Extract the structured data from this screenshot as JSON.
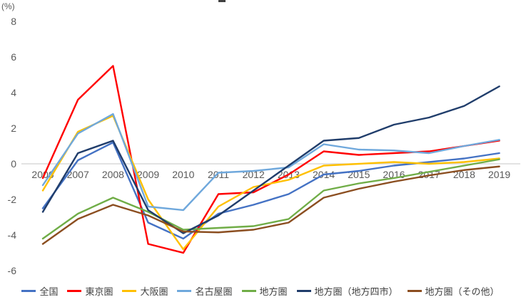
{
  "chart_data": {
    "type": "line",
    "title": "",
    "unit_label": "(%)",
    "x": [
      2006,
      2007,
      2008,
      2009,
      2010,
      2011,
      2012,
      2013,
      2014,
      2015,
      2016,
      2017,
      2018,
      2019
    ],
    "yticks": [
      8,
      6,
      4,
      2,
      0,
      -2,
      -4,
      -6
    ],
    "ylim": [
      -6,
      8
    ],
    "grid": "zero-line-only",
    "legend_position": "bottom",
    "series": [
      {
        "name": "全国",
        "color": "#4472C4",
        "values": [
          -2.5,
          0.2,
          1.2,
          -3.3,
          -4.2,
          -2.8,
          -2.3,
          -1.7,
          -0.6,
          -0.4,
          -0.1,
          0.1,
          0.3,
          0.6
        ]
      },
      {
        "name": "東京圏",
        "color": "#FF0000",
        "values": [
          -0.8,
          3.6,
          5.5,
          -4.5,
          -5.0,
          -1.7,
          -1.6,
          -0.6,
          0.7,
          0.5,
          0.6,
          0.7,
          1.0,
          1.3
        ]
      },
      {
        "name": "大阪圏",
        "color": "#FFC000",
        "values": [
          -1.5,
          1.8,
          2.7,
          -2.0,
          -4.8,
          -2.4,
          -1.3,
          -0.9,
          -0.1,
          0.0,
          0.1,
          0.0,
          0.1,
          0.3
        ]
      },
      {
        "name": "名古屋圏",
        "color": "#6FA8DC",
        "values": [
          -1.2,
          1.7,
          2.8,
          -2.4,
          -2.6,
          -0.5,
          -0.4,
          -0.2,
          1.1,
          0.8,
          0.75,
          0.6,
          1.0,
          1.35
        ]
      },
      {
        "name": "地方圏",
        "color": "#70AD47",
        "values": [
          -4.2,
          -2.8,
          -1.9,
          -2.7,
          -3.7,
          -3.6,
          -3.5,
          -3.1,
          -1.5,
          -1.1,
          -0.8,
          -0.45,
          -0.1,
          0.25
        ]
      },
      {
        "name": "地方圏（地方四市）",
        "color": "#203D6B",
        "values": [
          -2.7,
          0.6,
          1.3,
          -2.6,
          -3.9,
          -2.9,
          -1.5,
          -0.1,
          1.3,
          1.45,
          2.2,
          2.6,
          3.25,
          4.35
        ]
      },
      {
        "name": "地方圏（その他）",
        "color": "#8B4E20",
        "values": [
          -4.5,
          -3.1,
          -2.3,
          -2.9,
          -3.8,
          -3.85,
          -3.7,
          -3.3,
          -1.9,
          -1.4,
          -1.0,
          -0.65,
          -0.35,
          -0.15
        ]
      }
    ]
  },
  "style": {
    "axis_text_color": "#595959",
    "gridline_color": "#D9D9D9",
    "legend_text_color": "#404040",
    "background": "#FFFFFF"
  }
}
